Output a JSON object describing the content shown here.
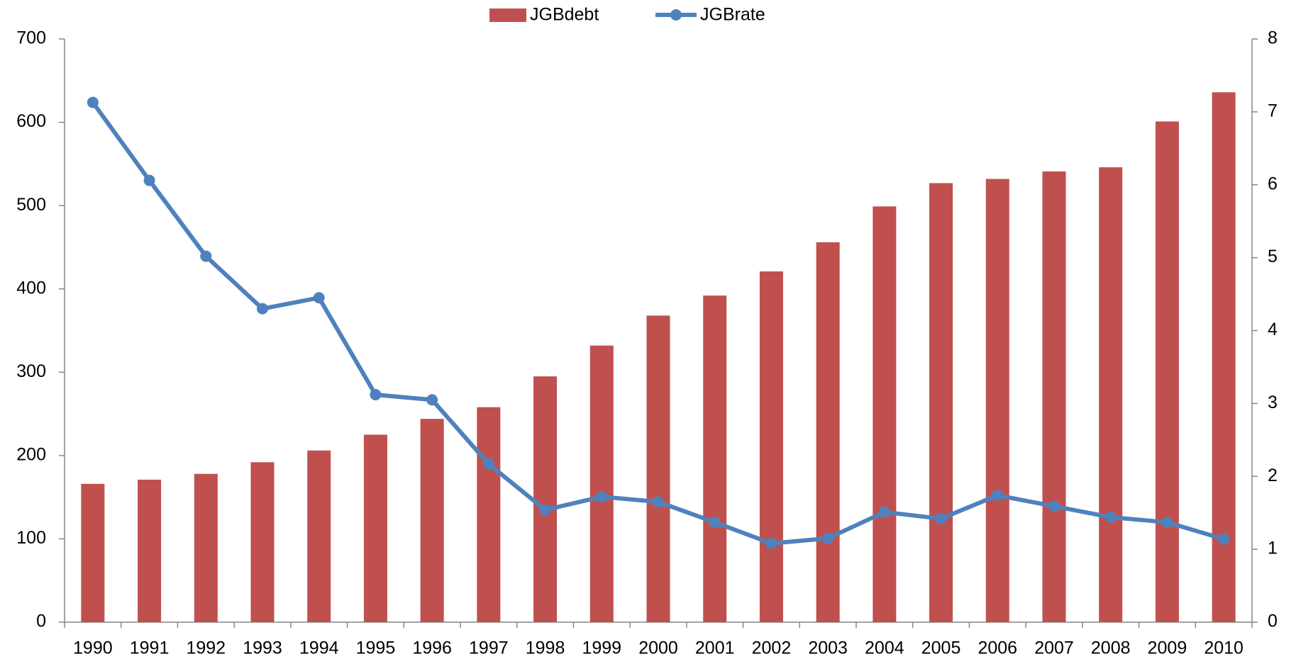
{
  "chart_data": {
    "type": "bar-line",
    "categories": [
      "1990",
      "1991",
      "1992",
      "1993",
      "1994",
      "1995",
      "1996",
      "1997",
      "1998",
      "1999",
      "2000",
      "2001",
      "2002",
      "2003",
      "2004",
      "2005",
      "2006",
      "2007",
      "2008",
      "2009",
      "2010"
    ],
    "series": [
      {
        "name": "JGBdebt",
        "type": "bar",
        "color": "#c0504d",
        "values": [
          166,
          171,
          178,
          192,
          206,
          225,
          244,
          258,
          295,
          332,
          368,
          392,
          421,
          456,
          499,
          527,
          532,
          541,
          546,
          601,
          636
        ]
      },
      {
        "name": "JGBrate",
        "type": "line",
        "color": "#4f81bd",
        "axis": "y2",
        "values": [
          7.13,
          6.06,
          5.02,
          4.3,
          4.45,
          3.12,
          3.05,
          2.17,
          1.54,
          1.72,
          1.65,
          1.37,
          1.08,
          1.15,
          1.51,
          1.42,
          1.74,
          1.59,
          1.44,
          1.37,
          1.14
        ]
      }
    ],
    "ylim": [
      0,
      700
    ],
    "yticks": [
      0,
      100,
      200,
      300,
      400,
      500,
      600,
      700
    ],
    "y2lim": [
      0,
      8
    ],
    "y2ticks": [
      0,
      1,
      2,
      3,
      4,
      5,
      6,
      7,
      8
    ],
    "legend": "top",
    "grid": false
  }
}
